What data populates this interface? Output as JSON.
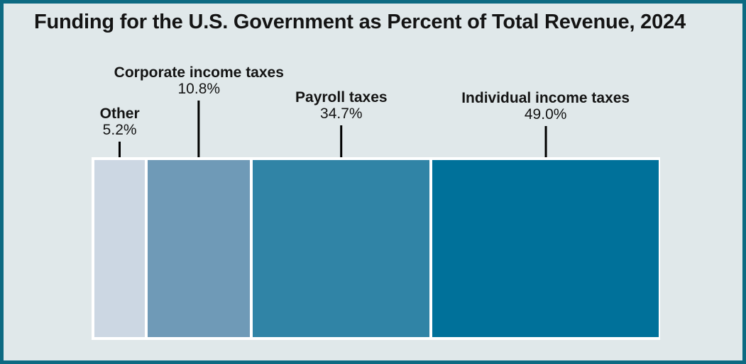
{
  "title": "Funding for the U.S. Government as Percent of Total Revenue, 2024",
  "colors": {
    "background": "#e0e8ea",
    "frame_border": "#0d6a82",
    "bar_frame": "#ffffff",
    "leader_line": "#000000",
    "text": "#141414"
  },
  "chart_data": {
    "type": "bar",
    "subtype": "single-horizontal-stacked-bar",
    "title": "Funding for the U.S. Government as Percent of Total Revenue, 2024",
    "unit": "percent of total revenue",
    "legend": "none",
    "axes": "none",
    "annotation_style": "category labels with percent values above bar, connected by vertical leader lines to segment centers",
    "segments": [
      {
        "label": "Other",
        "value": 5.2,
        "value_label": "5.2%",
        "color": "#ccd7e3",
        "display_width_pct": 9.1
      },
      {
        "label": "Corporate income taxes",
        "value": 10.8,
        "value_label": "10.8%",
        "color": "#6f9ab7",
        "display_width_pct": 18.4
      },
      {
        "label": "Payroll taxes",
        "value": 34.7,
        "value_label": "34.7%",
        "color": "#3084a6",
        "display_width_pct": 31.8
      },
      {
        "label": "Individual income taxes",
        "value": 49.0,
        "value_label": "49.0%",
        "color": "#00719a",
        "display_width_pct": 40.7
      }
    ]
  }
}
